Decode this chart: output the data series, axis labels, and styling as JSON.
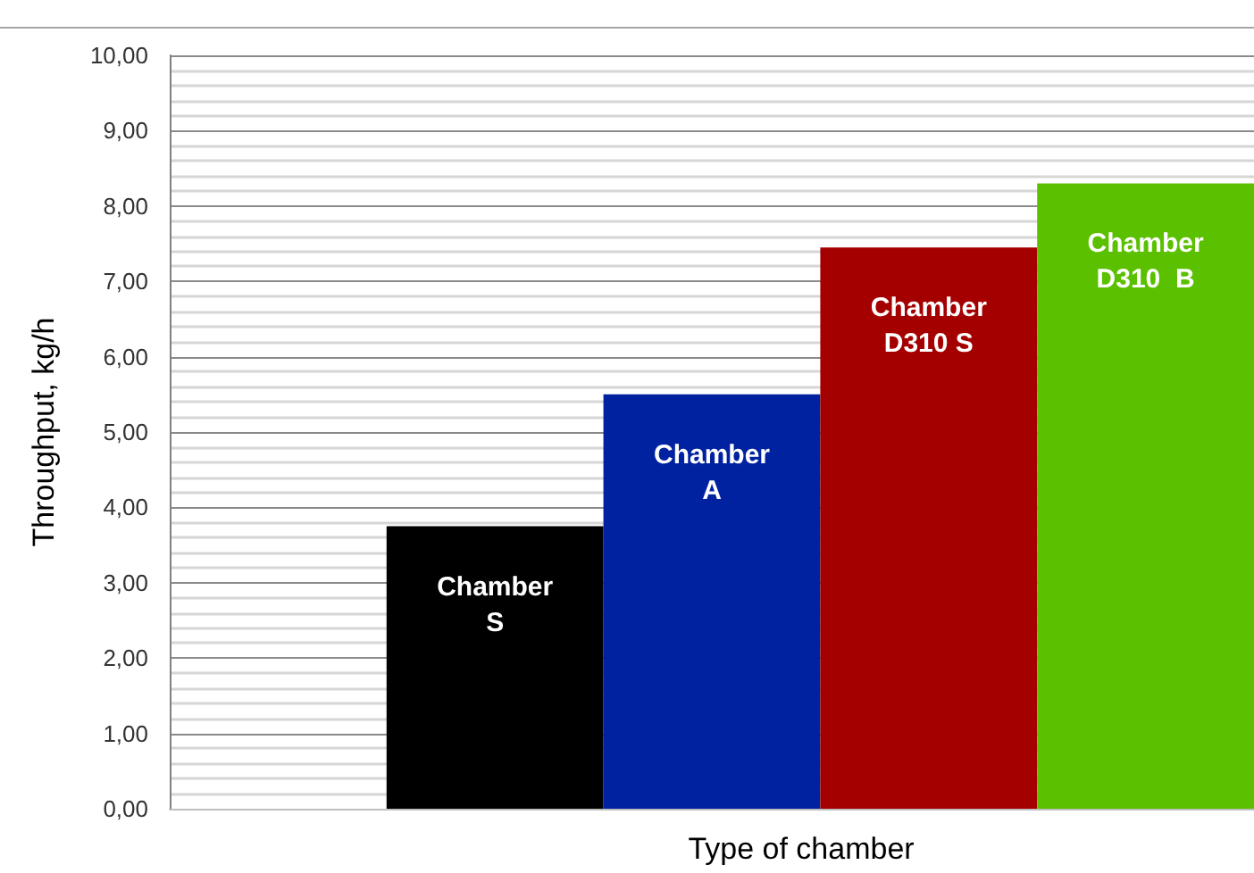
{
  "chart_data": {
    "type": "bar",
    "xlabel": "Type of chamber",
    "ylabel": "Throughput, kg/h",
    "categories": [
      null,
      "Chamber\nS",
      "Chamber\nA",
      "Chamber\nD310 S",
      "Chamber\nD310  B"
    ],
    "values": [
      null,
      3.75,
      5.5,
      7.45,
      8.3
    ],
    "colors": [
      null,
      "#000000",
      "#0022a0",
      "#a50000",
      "#5ac000"
    ],
    "ylim": [
      0,
      10
    ],
    "yticks": [
      {
        "value": 0,
        "label": "0,00"
      },
      {
        "value": 1,
        "label": "1,00"
      },
      {
        "value": 2,
        "label": "2,00"
      },
      {
        "value": 3,
        "label": "3,00"
      },
      {
        "value": 4,
        "label": "4,00"
      },
      {
        "value": 5,
        "label": "5,00"
      },
      {
        "value": 6,
        "label": "6,00"
      },
      {
        "value": 7,
        "label": "7,00"
      },
      {
        "value": 8,
        "label": "8,00"
      },
      {
        "value": 9,
        "label": "9,00"
      },
      {
        "value": 10,
        "label": "10,00"
      }
    ],
    "grid": "y",
    "tick_labels": "y"
  }
}
